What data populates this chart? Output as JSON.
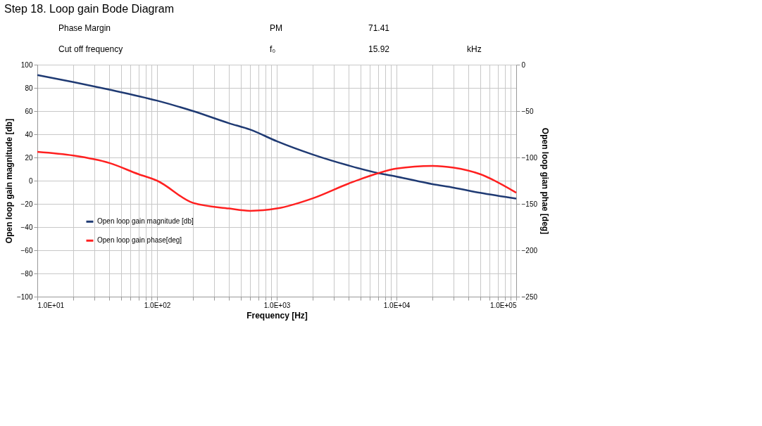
{
  "chart_data": {
    "type": "line",
    "title": "Step 18. Loop gain Bode Diagram",
    "annotations": [
      "Phase Margin",
      "PM",
      "71.41",
      "Cut off frequency",
      "f₀",
      "15.92",
      "kHz"
    ],
    "xlabel": "Frequency [Hz]",
    "ylabel": "Open loop gain magnitude [db]",
    "y2label": "Open loop gian phae [deg]",
    "log": "x",
    "grid": true,
    "legend": "bottom left",
    "line_style": "solid",
    "marker": "none",
    "xlim": [
      10,
      100000
    ],
    "xticks": [
      {
        "value": 10,
        "label": "1.0E+01"
      },
      {
        "value": 20,
        "label": null
      },
      {
        "value": 30,
        "label": null
      },
      {
        "value": 40,
        "label": null
      },
      {
        "value": 50,
        "label": null
      },
      {
        "value": 60,
        "label": null
      },
      {
        "value": 70,
        "label": null
      },
      {
        "value": 80,
        "label": null
      },
      {
        "value": 90,
        "label": null
      },
      {
        "value": 100,
        "label": "1.0E+02"
      },
      {
        "value": 200,
        "label": null
      },
      {
        "value": 300,
        "label": null
      },
      {
        "value": 400,
        "label": null
      },
      {
        "value": 500,
        "label": null
      },
      {
        "value": 600,
        "label": null
      },
      {
        "value": 700,
        "label": null
      },
      {
        "value": 800,
        "label": null
      },
      {
        "value": 900,
        "label": null
      },
      {
        "value": 1000,
        "label": "1.0E+03"
      },
      {
        "value": 2000,
        "label": null
      },
      {
        "value": 3000,
        "label": null
      },
      {
        "value": 4000,
        "label": null
      },
      {
        "value": 5000,
        "label": null
      },
      {
        "value": 6000,
        "label": null
      },
      {
        "value": 7000,
        "label": null
      },
      {
        "value": 8000,
        "label": null
      },
      {
        "value": 9000,
        "label": null
      },
      {
        "value": 10000,
        "label": "1.0E+04"
      },
      {
        "value": 20000,
        "label": null
      },
      {
        "value": 30000,
        "label": null
      },
      {
        "value": 40000,
        "label": null
      },
      {
        "value": 50000,
        "label": null
      },
      {
        "value": 60000,
        "label": null
      },
      {
        "value": 70000,
        "label": null
      },
      {
        "value": 80000,
        "label": null
      },
      {
        "value": 90000,
        "label": null
      },
      {
        "value": 100000,
        "label": "1.0E+05"
      }
    ],
    "ylim": [
      -100,
      100
    ],
    "yticks": [
      -100,
      -80,
      -60,
      -40,
      -20,
      0,
      20,
      40,
      60,
      80,
      100
    ],
    "y2lim": [
      -250,
      0
    ],
    "y2ticks": [
      -250,
      -200,
      -150,
      -100,
      -50,
      0
    ],
    "series": [
      {
        "name": "Open loop gain magnitude [db]",
        "color": "#1f3a73",
        "x": [
          10,
          20,
          40,
          100,
          200,
          400,
          600,
          1000,
          2000,
          4000,
          7000,
          10000,
          20000,
          30000,
          50000,
          100000
        ],
        "values": [
          91,
          85,
          78.5,
          69,
          60,
          49.5,
          44,
          34,
          22.5,
          13,
          6.5,
          3.5,
          -3,
          -6,
          -10.5,
          -15.5
        ]
      },
      {
        "name": "Open loop gain phase[deg]",
        "color": "#ff2020",
        "axis": "y2",
        "x": [
          10,
          20,
          40,
          70,
          100,
          200,
          400,
          600,
          1000,
          2000,
          4000,
          7000,
          10000,
          20000,
          30000,
          50000,
          100000
        ],
        "values": [
          -94,
          -98,
          -106,
          -118,
          -125,
          -149,
          -155,
          -157.5,
          -155,
          -144,
          -128,
          -117,
          -112,
          -109,
          -111,
          -118,
          -138
        ]
      }
    ]
  }
}
